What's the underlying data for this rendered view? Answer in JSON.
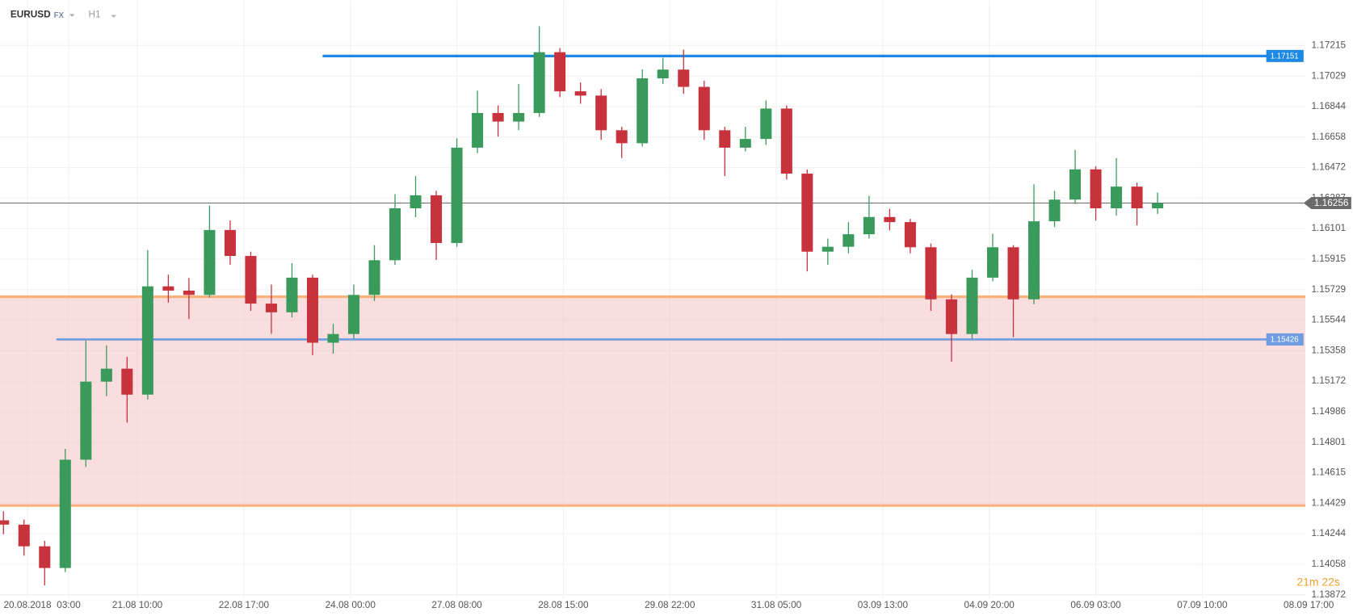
{
  "chart_data": {
    "type": "candlestick",
    "symbol": "EURUSD",
    "market": "FX",
    "interval": "H1",
    "countdown": "21m 22s",
    "up_color": "#3a9a5c",
    "down_color": "#c8323c",
    "grid": true,
    "xlim": [
      0,
      380
    ],
    "ylim": [
      1.1385,
      1.1749
    ],
    "xticks": [
      {
        "value": 8,
        "label": "20.08.2018"
      },
      {
        "value": 20,
        "label": "03:00"
      },
      {
        "value": 40,
        "label": "21.08  10:00"
      },
      {
        "value": 71,
        "label": "22.08  17:00"
      },
      {
        "value": 102,
        "label": "24.08  00:00"
      },
      {
        "value": 133,
        "label": "27.08  08:00"
      },
      {
        "value": 164,
        "label": "28.08  15:00"
      },
      {
        "value": 195,
        "label": "29.08  22:00"
      },
      {
        "value": 226,
        "label": "31.08  05:00"
      },
      {
        "value": 257,
        "label": "03.09  13:00"
      },
      {
        "value": 288,
        "label": "04.09  20:00"
      },
      {
        "value": 319,
        "label": "06.09  03:00"
      },
      {
        "value": 350,
        "label": "07.09  10:00"
      },
      {
        "value": 381,
        "label": "08.09  17:00"
      }
    ],
    "yticks": [
      1.17215,
      1.17029,
      1.16844,
      1.16658,
      1.16472,
      1.16287,
      1.16101,
      1.15915,
      1.15729,
      1.15544,
      1.15358,
      1.15172,
      1.14986,
      1.14801,
      1.14615,
      1.14429,
      1.14244,
      1.14058,
      1.13872
    ],
    "zone": {
      "from": 1.14415,
      "to": 1.15686,
      "color": "#f5c6c9",
      "edge_color": "#f8b27a"
    },
    "levels": [
      {
        "value": 1.17151,
        "color": "#1e88e5"
      },
      {
        "value": 1.15426,
        "color": "#6f9de0"
      }
    ],
    "current_price": {
      "value": 1.16256,
      "color": "#6b6b6b"
    },
    "x": [
      1,
      7,
      13,
      19,
      25,
      31,
      37,
      43,
      49,
      55,
      61,
      67,
      73,
      79,
      85,
      91,
      97,
      103,
      109,
      115,
      121,
      127,
      133,
      139,
      145,
      151,
      157,
      163,
      169,
      175,
      181,
      187,
      193,
      199,
      205,
      211,
      217,
      223,
      229,
      235,
      241,
      247,
      253,
      259,
      265,
      271,
      277,
      283,
      289,
      295,
      301,
      307,
      313,
      319,
      325,
      331,
      337
    ],
    "open": [
      1.14325,
      1.14299,
      1.14167,
      1.14035,
      1.14694,
      1.15169,
      1.15248,
      1.1509,
      1.15749,
      1.15723,
      1.15697,
      1.16092,
      1.15934,
      1.15644,
      1.15591,
      1.15802,
      1.15406,
      1.15459,
      1.15697,
      1.15908,
      1.16224,
      1.16303,
      1.16013,
      1.16593,
      1.16804,
      1.16752,
      1.16804,
      1.17174,
      1.16936,
      1.1691,
      1.16699,
      1.1662,
      1.17015,
      1.17068,
      1.16963,
      1.16699,
      1.16593,
      1.16646,
      1.16831,
      1.16435,
      1.1596,
      1.1599,
      1.16066,
      1.16171,
      1.1614,
      1.15987,
      1.1567,
      1.15459,
      1.15802,
      1.15987,
      1.1567,
      1.16145,
      1.16277,
      1.16461,
      1.16224,
      1.16356,
      1.16224
    ],
    "high": [
      1.1438,
      1.1433,
      1.142,
      1.1476,
      1.1542,
      1.1539,
      1.1532,
      1.1597,
      1.1582,
      1.158,
      1.1624,
      1.1615,
      1.1596,
      1.1576,
      1.1589,
      1.1582,
      1.1552,
      1.1576,
      1.16,
      1.1631,
      1.1642,
      1.1633,
      1.1665,
      1.1694,
      1.1685,
      1.1698,
      1.17332,
      1.172,
      1.1699,
      1.1695,
      1.1672,
      1.1707,
      1.1714,
      1.1719,
      1.17,
      1.1672,
      1.1672,
      1.1688,
      1.1685,
      1.1646,
      1.1604,
      1.1614,
      1.163,
      1.1622,
      1.1616,
      1.1601,
      1.157,
      1.1585,
      1.1607,
      1.16,
      1.1637,
      1.1633,
      1.1658,
      1.1648,
      1.1653,
      1.1638,
      1.1632
    ],
    "low": [
      1.1424,
      1.1411,
      1.13929,
      1.1401,
      1.1465,
      1.1508,
      1.1492,
      1.1506,
      1.1565,
      1.1555,
      1.1568,
      1.1588,
      1.156,
      1.1546,
      1.1556,
      1.1533,
      1.1534,
      1.1543,
      1.1566,
      1.1588,
      1.1617,
      1.1591,
      1.1599,
      1.1656,
      1.1666,
      1.167,
      1.1678,
      1.169,
      1.1686,
      1.1664,
      1.1653,
      1.166,
      1.1698,
      1.1692,
      1.1664,
      1.1642,
      1.1657,
      1.1661,
      1.164,
      1.1584,
      1.1588,
      1.1595,
      1.1604,
      1.1609,
      1.1595,
      1.156,
      1.1529,
      1.1543,
      1.1578,
      1.1544,
      1.1564,
      1.1611,
      1.1625,
      1.1615,
      1.1618,
      1.1612,
      1.1619
    ],
    "close": [
      1.14299,
      1.14167,
      1.14035,
      1.14694,
      1.15169,
      1.15248,
      1.1509,
      1.15749,
      1.15723,
      1.15697,
      1.16092,
      1.15934,
      1.15644,
      1.15591,
      1.15802,
      1.15406,
      1.15459,
      1.15697,
      1.15908,
      1.16224,
      1.16303,
      1.16013,
      1.16593,
      1.16804,
      1.16752,
      1.16804,
      1.17174,
      1.16936,
      1.1691,
      1.16699,
      1.1662,
      1.17015,
      1.17068,
      1.16963,
      1.16699,
      1.16593,
      1.16646,
      1.16831,
      1.16435,
      1.1596,
      1.1599,
      1.16066,
      1.16171,
      1.1614,
      1.15987,
      1.1567,
      1.15459,
      1.15802,
      1.15987,
      1.1567,
      1.16145,
      1.16277,
      1.16461,
      1.16224,
      1.16356,
      1.16224,
      1.16256
    ]
  }
}
